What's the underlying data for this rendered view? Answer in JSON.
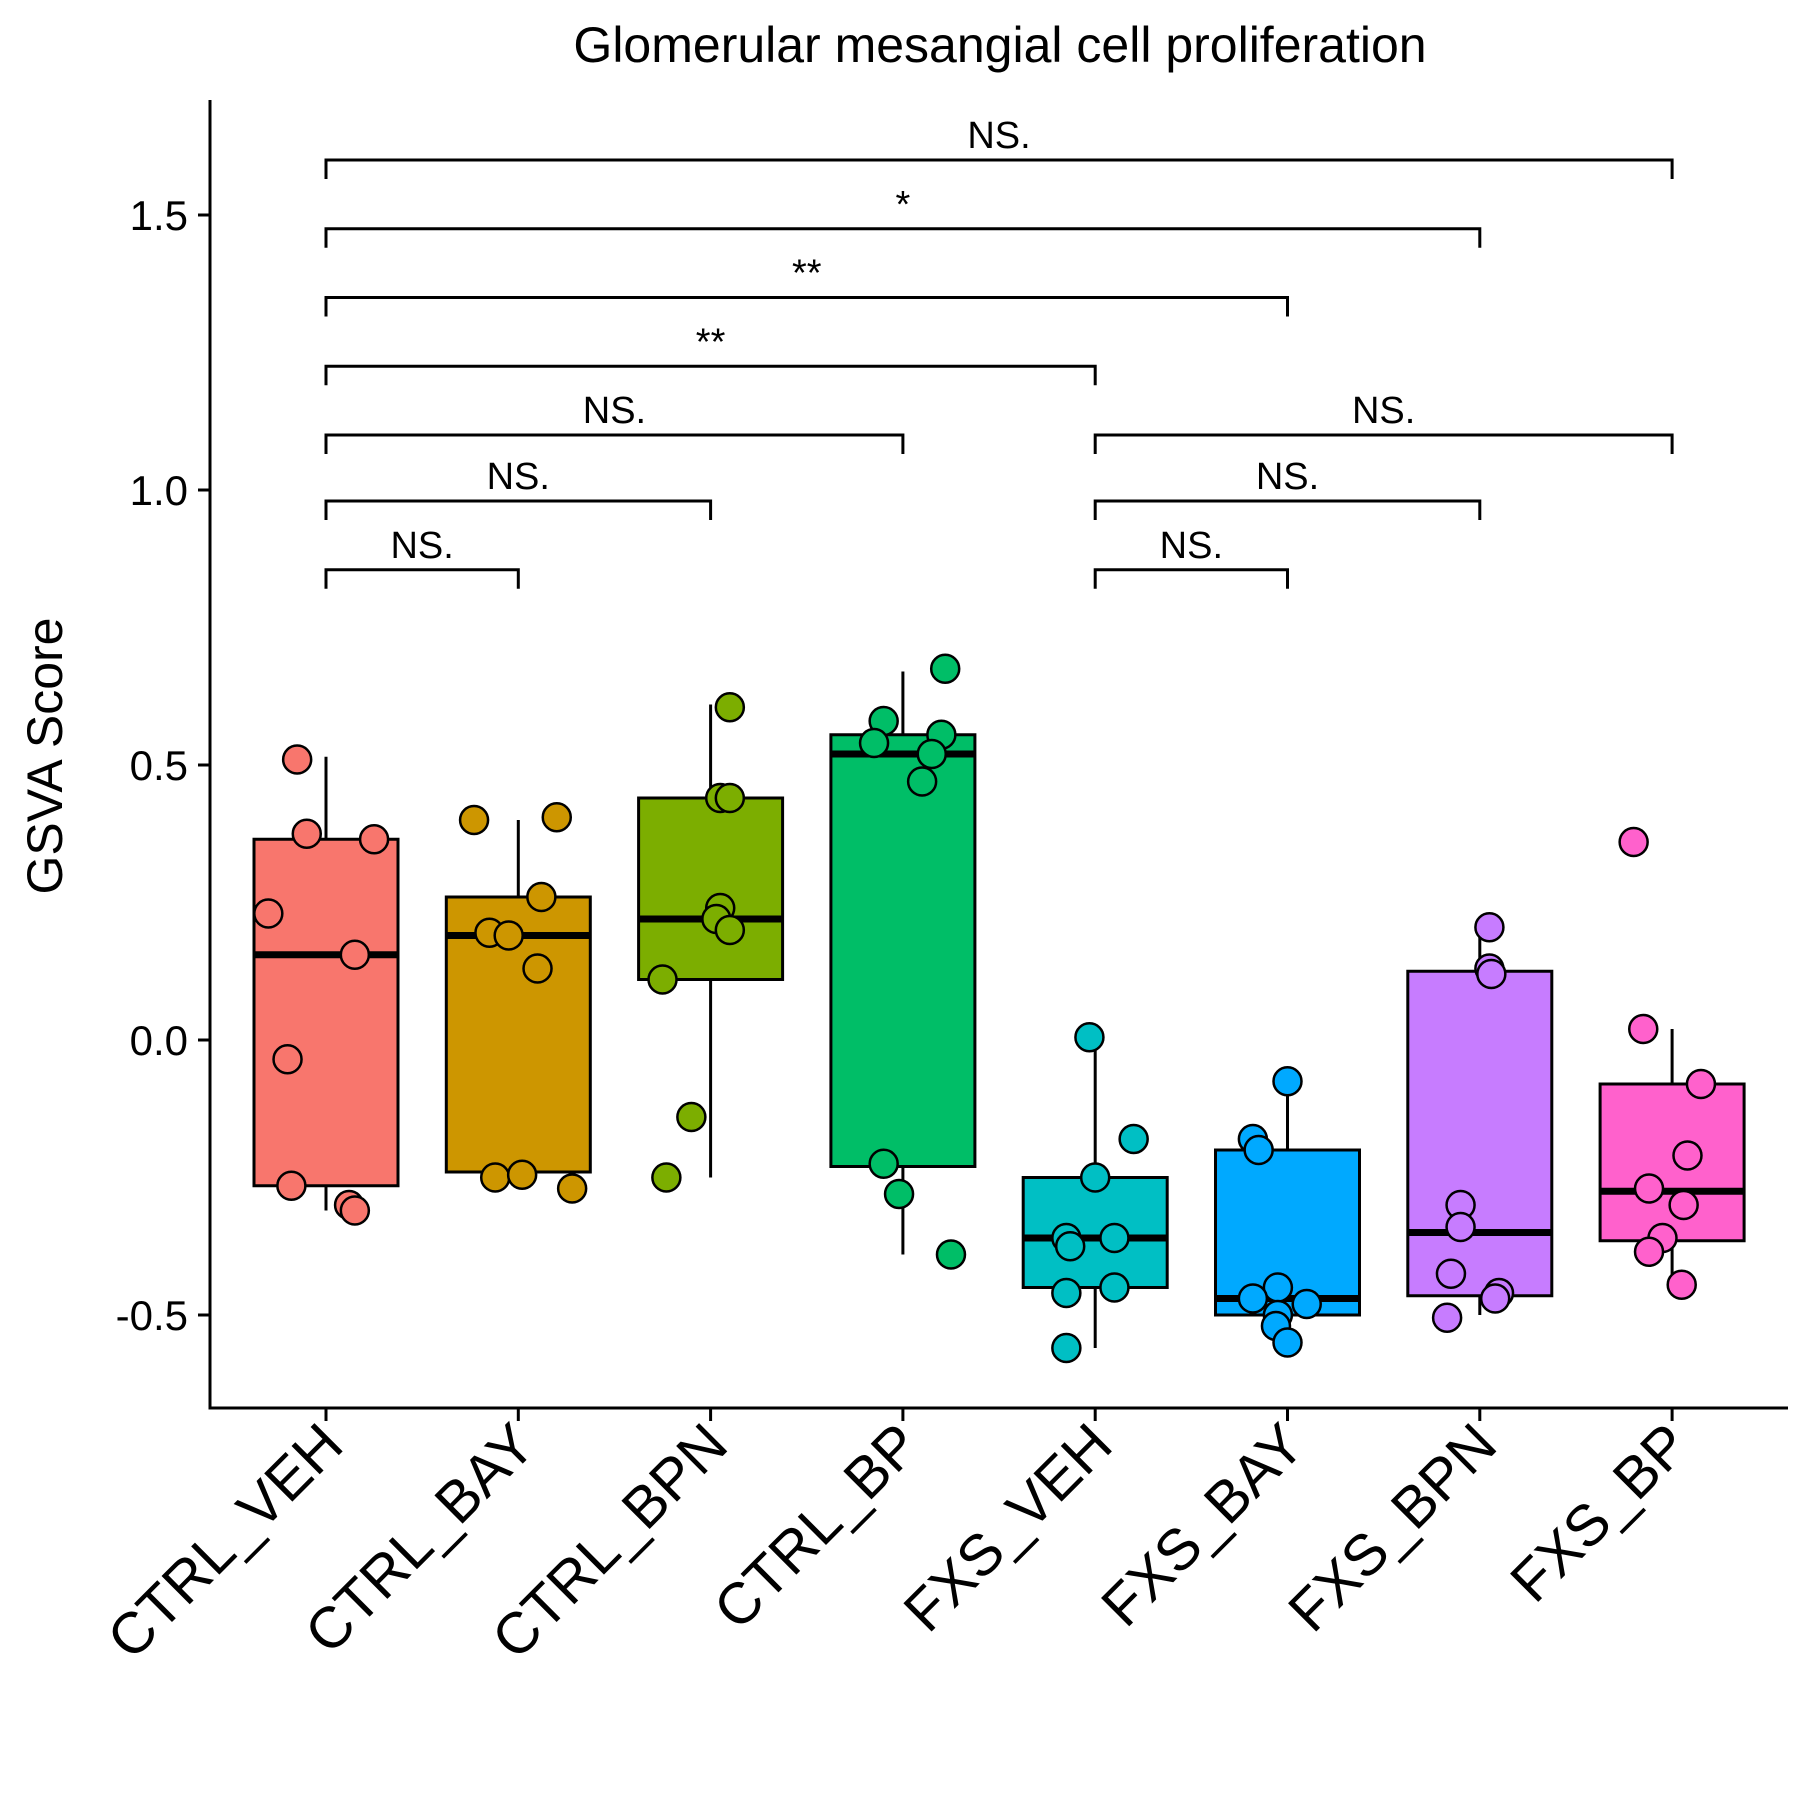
{
  "chart_data": {
    "type": "box",
    "title": "Glomerular mesangial cell proliferation",
    "xlabel": "",
    "ylabel": "GSVA Score",
    "ylim": [
      -0.67,
      1.7
    ],
    "yticks": [
      -0.5,
      0.0,
      0.5,
      1.0,
      1.5
    ],
    "ytick_labels": [
      "-0.5",
      "0.0",
      "0.5",
      "1.0",
      "1.5"
    ],
    "categories": [
      "CTRL_VEH",
      "CTRL_BAY",
      "CTRL_BPN",
      "CTRL_BP",
      "FXS_VEH",
      "FXS_BAY",
      "FXS_BPN",
      "FXS_BP"
    ],
    "colors": [
      "#F8766D",
      "#CD9600",
      "#7CAE00",
      "#00BE67",
      "#00BFC4",
      "#00A9FF",
      "#C77CFF",
      "#FF61CC"
    ],
    "boxes": [
      {
        "whisker_low": -0.31,
        "q1": -0.265,
        "median": 0.155,
        "q3": 0.365,
        "whisker_high": 0.515
      },
      {
        "whisker_low": -0.24,
        "q1": -0.24,
        "median": 0.19,
        "q3": 0.26,
        "whisker_high": 0.4
      },
      {
        "whisker_low": -0.25,
        "q1": 0.11,
        "median": 0.22,
        "q3": 0.44,
        "whisker_high": 0.61
      },
      {
        "whisker_low": -0.39,
        "q1": -0.23,
        "median": 0.52,
        "q3": 0.555,
        "whisker_high": 0.67
      },
      {
        "whisker_low": -0.56,
        "q1": -0.45,
        "median": -0.36,
        "q3": -0.25,
        "whisker_high": 0.0
      },
      {
        "whisker_low": -0.5,
        "q1": -0.5,
        "median": -0.47,
        "q3": -0.2,
        "whisker_high": -0.08
      },
      {
        "whisker_low": -0.5,
        "q1": -0.465,
        "median": -0.35,
        "q3": 0.125,
        "whisker_high": 0.2
      },
      {
        "whisker_low": -0.44,
        "q1": -0.365,
        "median": -0.275,
        "q3": -0.08,
        "whisker_high": 0.02
      }
    ],
    "points": [
      [
        [
          0.51,
          -0.15
        ],
        [
          0.375,
          -0.1
        ],
        [
          0.365,
          0.25
        ],
        [
          0.23,
          -0.3
        ],
        [
          0.155,
          0.15
        ],
        [
          -0.035,
          -0.2
        ],
        [
          -0.265,
          -0.18
        ],
        [
          -0.3,
          0.12
        ],
        [
          -0.31,
          0.15
        ]
      ],
      [
        [
          0.4,
          -0.23
        ],
        [
          0.405,
          0.2
        ],
        [
          0.26,
          0.12
        ],
        [
          0.195,
          -0.15
        ],
        [
          0.19,
          -0.05
        ],
        [
          0.13,
          0.1
        ],
        [
          -0.25,
          -0.12
        ],
        [
          -0.245,
          0.02
        ],
        [
          -0.27,
          0.28
        ]
      ],
      [
        [
          0.605,
          0.1
        ],
        [
          0.44,
          0.05
        ],
        [
          0.44,
          0.1
        ],
        [
          0.24,
          0.05
        ],
        [
          0.22,
          0.03
        ],
        [
          0.2,
          0.1
        ],
        [
          0.11,
          -0.25
        ],
        [
          -0.14,
          -0.1
        ],
        [
          -0.25,
          -0.23
        ]
      ],
      [
        [
          0.675,
          0.22
        ],
        [
          0.58,
          -0.1
        ],
        [
          0.555,
          0.2
        ],
        [
          0.54,
          -0.15
        ],
        [
          0.52,
          0.15
        ],
        [
          0.47,
          0.1
        ],
        [
          -0.225,
          -0.1
        ],
        [
          -0.28,
          -0.02
        ],
        [
          -0.39,
          0.25
        ]
      ],
      [
        [
          0.005,
          -0.03
        ],
        [
          -0.18,
          0.2
        ],
        [
          -0.25,
          0.0
        ],
        [
          -0.36,
          -0.15
        ],
        [
          -0.36,
          0.1
        ],
        [
          -0.375,
          -0.13
        ],
        [
          -0.45,
          0.1
        ],
        [
          -0.46,
          -0.15
        ],
        [
          -0.56,
          -0.15
        ]
      ],
      [
        [
          -0.075,
          0.0
        ],
        [
          -0.18,
          -0.18
        ],
        [
          -0.2,
          -0.15
        ],
        [
          -0.45,
          -0.05
        ],
        [
          -0.47,
          -0.18
        ],
        [
          -0.48,
          0.1
        ],
        [
          -0.5,
          -0.05
        ],
        [
          -0.52,
          -0.06
        ],
        [
          -0.55,
          0.0
        ]
      ],
      [
        [
          0.205,
          0.05
        ],
        [
          0.13,
          0.05
        ],
        [
          0.12,
          0.06
        ],
        [
          -0.3,
          -0.1
        ],
        [
          -0.34,
          -0.1
        ],
        [
          -0.425,
          -0.15
        ],
        [
          -0.46,
          0.1
        ],
        [
          -0.47,
          0.08
        ],
        [
          -0.505,
          -0.17
        ]
      ],
      [
        [
          0.36,
          -0.2
        ],
        [
          0.02,
          -0.15
        ],
        [
          -0.08,
          0.15
        ],
        [
          -0.21,
          0.08
        ],
        [
          -0.27,
          -0.12
        ],
        [
          -0.3,
          0.06
        ],
        [
          -0.36,
          -0.05
        ],
        [
          -0.385,
          -0.12
        ],
        [
          -0.445,
          0.05
        ]
      ]
    ],
    "comparisons": [
      {
        "from": 0,
        "to": 1,
        "y": 0.855,
        "label": "NS."
      },
      {
        "from": 0,
        "to": 2,
        "y": 0.98,
        "label": "NS."
      },
      {
        "from": 0,
        "to": 3,
        "y": 1.1,
        "label": "NS."
      },
      {
        "from": 0,
        "to": 4,
        "y": 1.225,
        "label": "**"
      },
      {
        "from": 0,
        "to": 5,
        "y": 1.35,
        "label": "**"
      },
      {
        "from": 0,
        "to": 6,
        "y": 1.475,
        "label": "*"
      },
      {
        "from": 0,
        "to": 7,
        "y": 1.6,
        "label": "NS."
      },
      {
        "from": 4,
        "to": 5,
        "y": 0.855,
        "label": "NS."
      },
      {
        "from": 4,
        "to": 6,
        "y": 0.98,
        "label": "NS."
      },
      {
        "from": 4,
        "to": 7,
        "y": 1.1,
        "label": "NS."
      }
    ]
  }
}
